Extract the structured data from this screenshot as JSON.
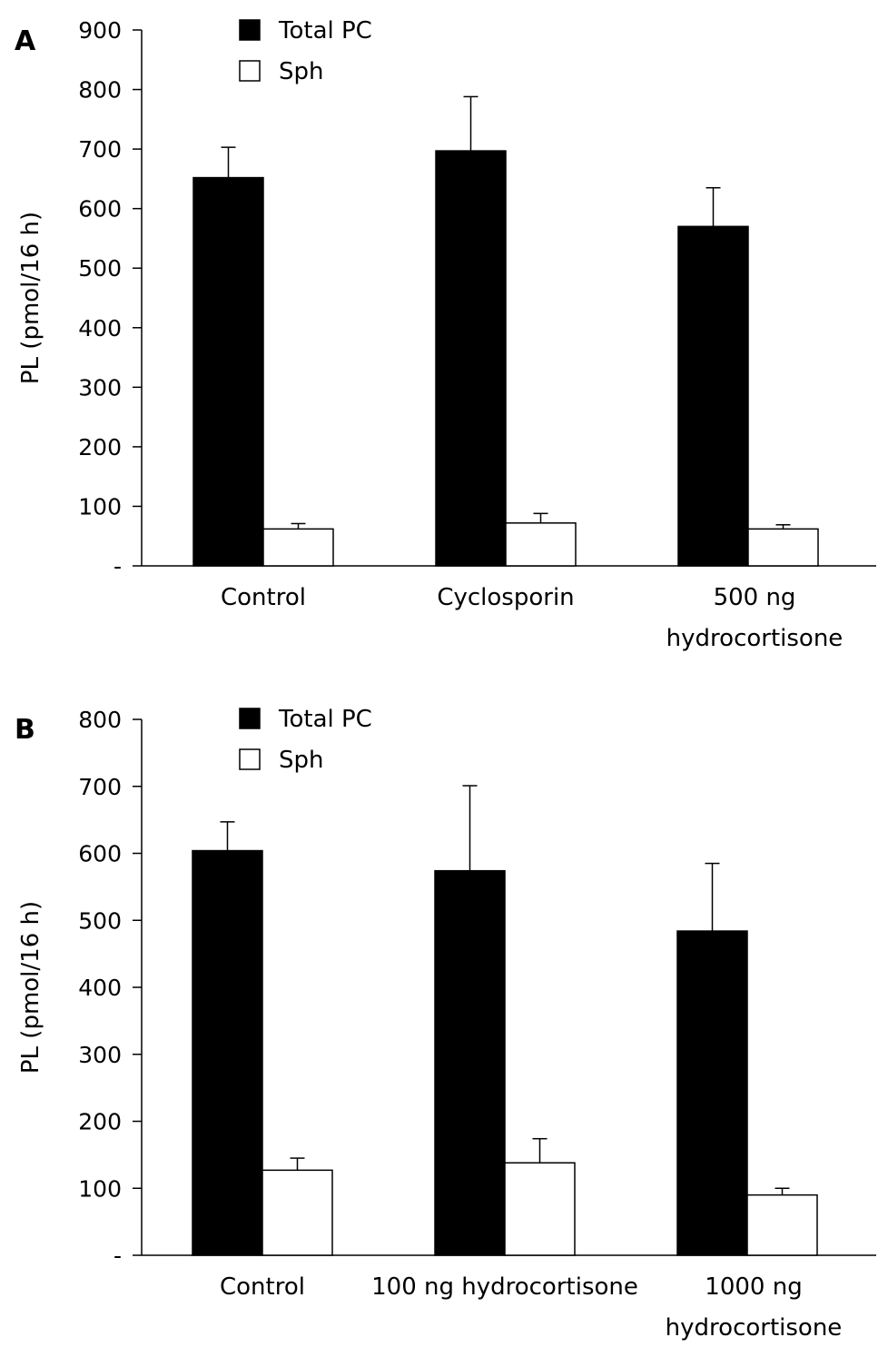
{
  "chart_data": [
    {
      "type": "bar",
      "panel_label": "A",
      "ylabel": "PL (pmol/16 h)",
      "ylim": [
        0,
        900
      ],
      "yticks": [
        0,
        100,
        200,
        300,
        400,
        500,
        600,
        700,
        800,
        900
      ],
      "ytick_labels": [
        "-",
        "100",
        "200",
        "300",
        "400",
        "500",
        "600",
        "700",
        "800",
        "900"
      ],
      "categories": [
        [
          "Control"
        ],
        [
          "Cyclosporin"
        ],
        [
          "500 ng",
          "hydrocortisone"
        ]
      ],
      "series": [
        {
          "name": "Total PC",
          "color": "#000000",
          "values": [
            652,
            697,
            570
          ],
          "errors": [
            51,
            91,
            65
          ]
        },
        {
          "name": "Sph",
          "color": "#ffffff",
          "values": [
            62,
            72,
            62
          ],
          "errors": [
            9,
            16,
            7
          ]
        }
      ],
      "legend": "top-left",
      "grid": false
    },
    {
      "type": "bar",
      "panel_label": "B",
      "ylabel": "PL (pmol/16 h)",
      "ylim": [
        0,
        800
      ],
      "yticks": [
        0,
        100,
        200,
        300,
        400,
        500,
        600,
        700,
        800
      ],
      "ytick_labels": [
        "-",
        "100",
        "200",
        "300",
        "400",
        "500",
        "600",
        "700",
        "800"
      ],
      "categories": [
        [
          "Control"
        ],
        [
          "100 ng hydrocortisone"
        ],
        [
          "1000 ng",
          "hydrocortisone"
        ]
      ],
      "series": [
        {
          "name": "Total PC",
          "color": "#000000",
          "values": [
            604,
            574,
            484
          ],
          "errors": [
            43,
            127,
            101
          ]
        },
        {
          "name": "Sph",
          "color": "#ffffff",
          "values": [
            127,
            138,
            90
          ],
          "errors": [
            18,
            36,
            10
          ]
        }
      ],
      "legend": "top-left",
      "grid": false
    }
  ]
}
